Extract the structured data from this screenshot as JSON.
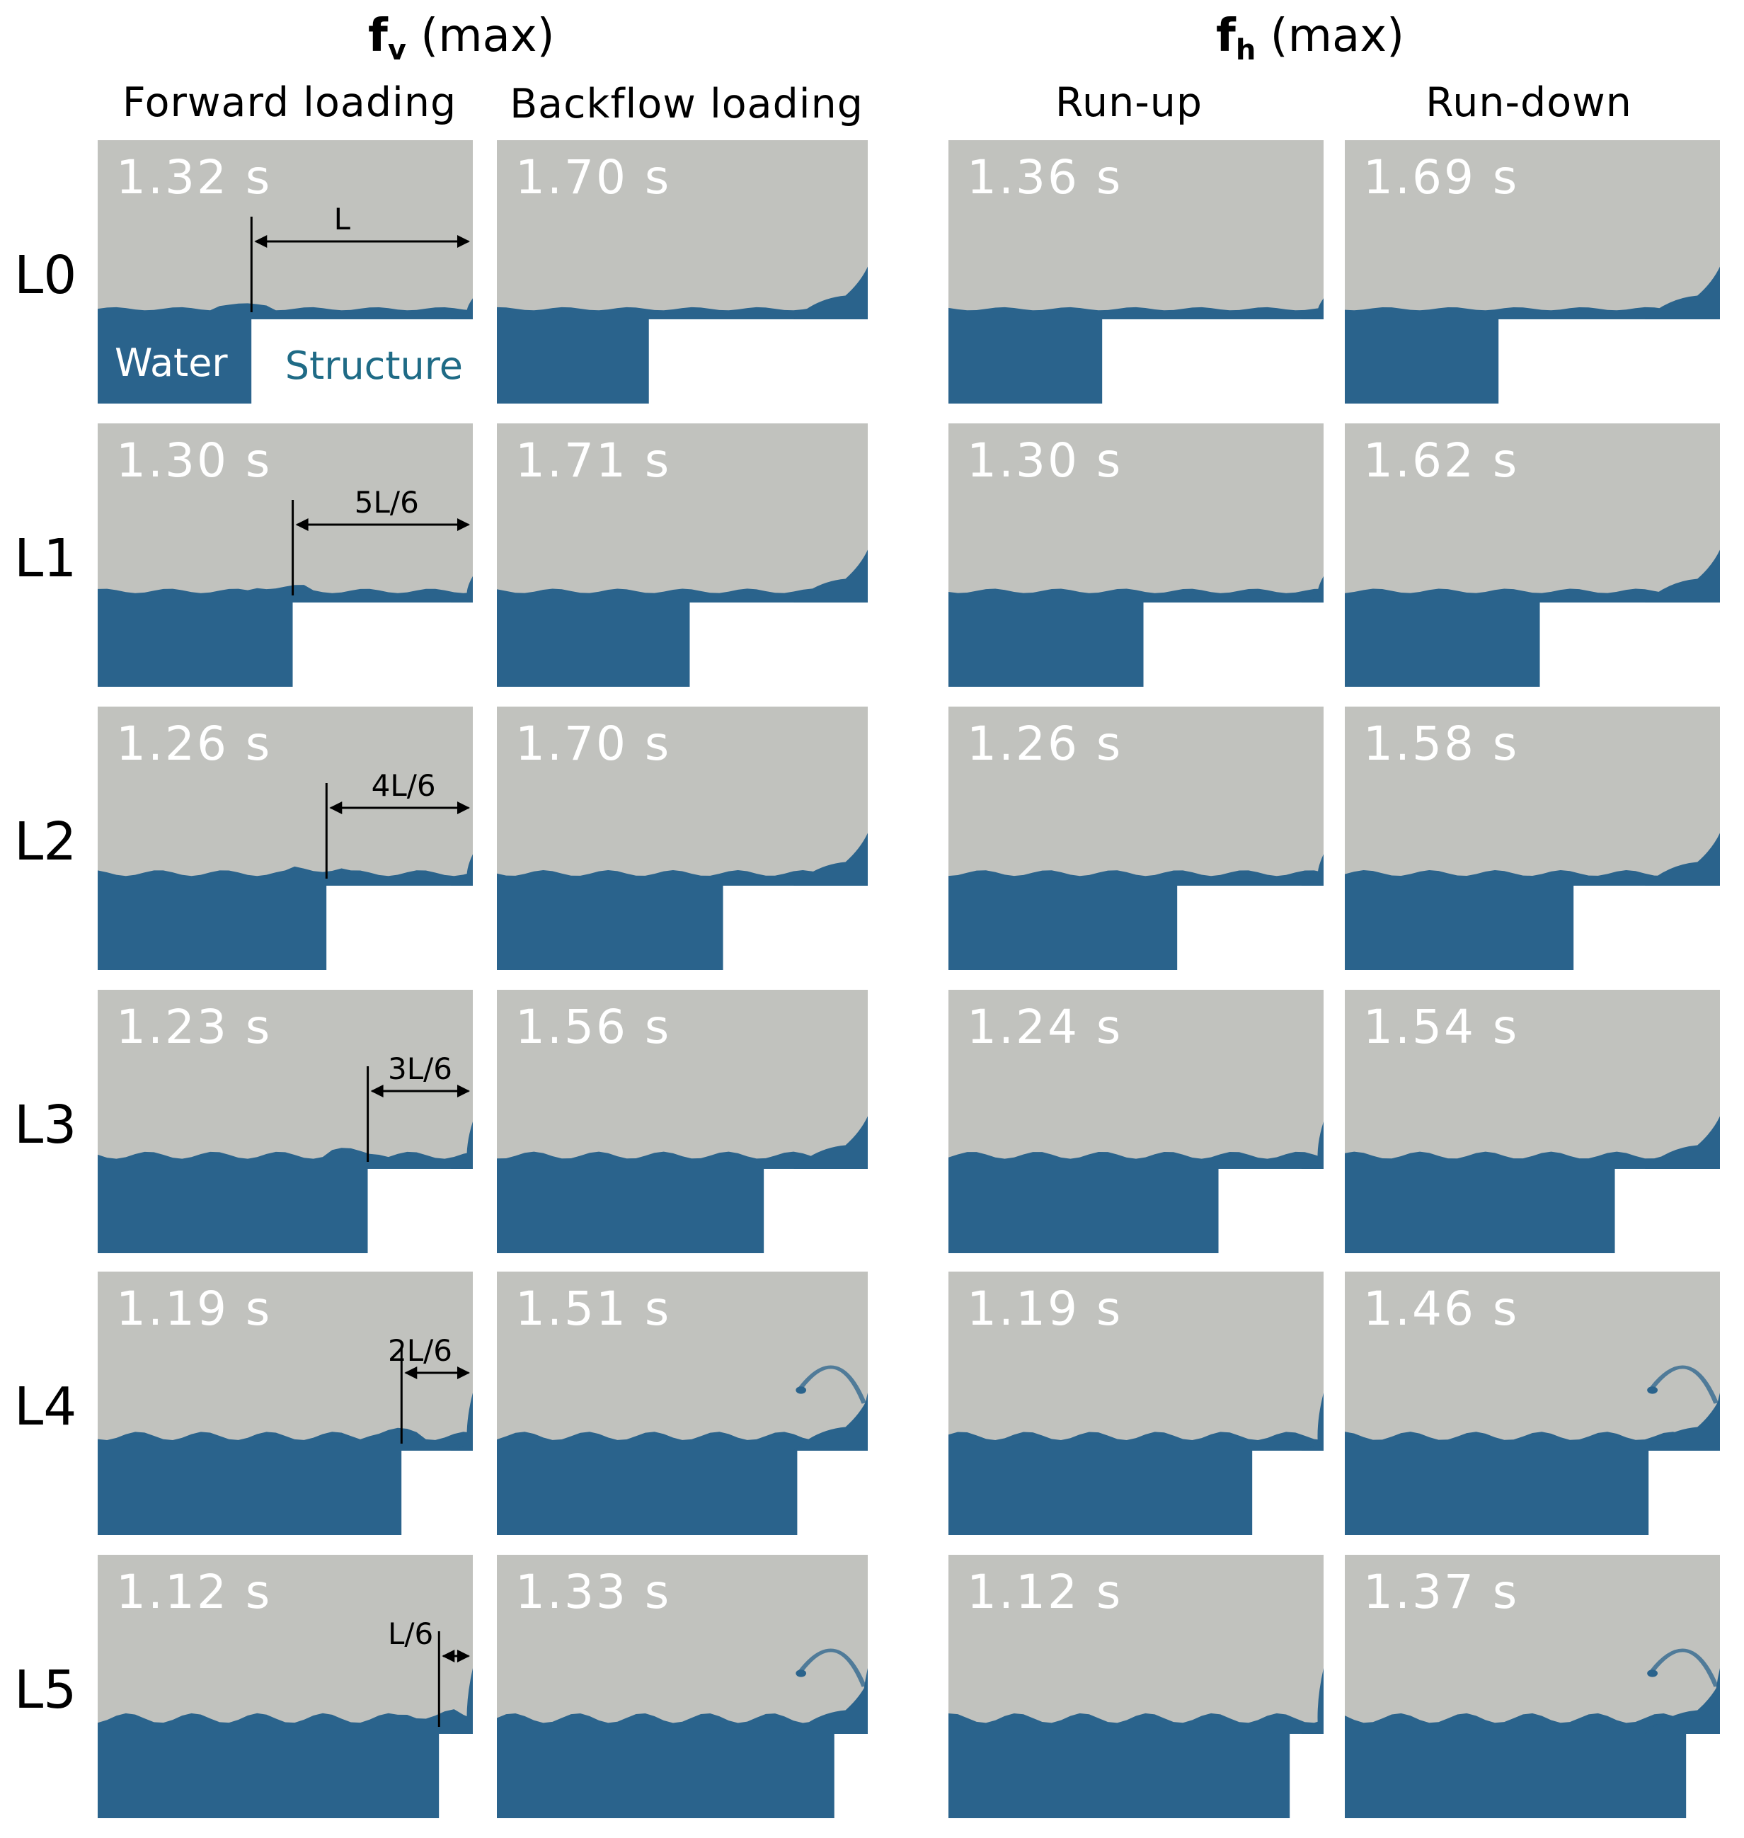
{
  "headers": {
    "fv_symbol": "f",
    "fv_sub": "v",
    "fv_suffix": " (max)",
    "fh_symbol": "f",
    "fh_sub": "h",
    "fh_suffix": " (max)"
  },
  "columns": [
    "Forward loading",
    "Backflow loading",
    "Run-up",
    "Run-down"
  ],
  "rows": [
    {
      "label": "L0",
      "dim": "L",
      "struct_frac": 0.41,
      "times": [
        "1.32 s",
        "1.70 s",
        "1.36 s",
        "1.69 s"
      ]
    },
    {
      "label": "L1",
      "dim": "5L/6",
      "struct_frac": 0.52,
      "times": [
        "1.30 s",
        "1.71 s",
        "1.30 s",
        "1.62 s"
      ]
    },
    {
      "label": "L2",
      "dim": "4L/6",
      "struct_frac": 0.61,
      "times": [
        "1.26 s",
        "1.70 s",
        "1.26 s",
        "1.58 s"
      ]
    },
    {
      "label": "L3",
      "dim": "3L/6",
      "struct_frac": 0.72,
      "times": [
        "1.23 s",
        "1.56 s",
        "1.24 s",
        "1.54 s"
      ]
    },
    {
      "label": "L4",
      "dim": "2L/6",
      "struct_frac": 0.81,
      "times": [
        "1.19 s",
        "1.51 s",
        "1.19 s",
        "1.46 s"
      ]
    },
    {
      "label": "L5",
      "dim": "L/6",
      "struct_frac": 0.91,
      "times": [
        "1.12 s",
        "1.33 s",
        "1.12 s",
        "1.37 s"
      ]
    }
  ],
  "legend": {
    "water": "Water",
    "structure": "Structure"
  },
  "colors": {
    "water": "#2a638c",
    "air": "#c1c2be",
    "structure": "#ffffff",
    "structure_text": "#1f6b86"
  }
}
